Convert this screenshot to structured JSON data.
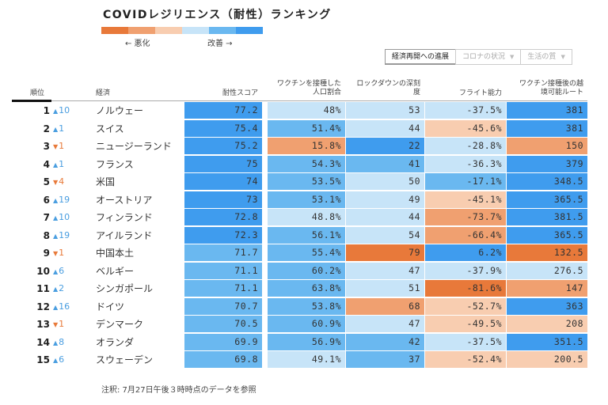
{
  "title": "COVIDレジリエンス（耐性）ランキング",
  "legend": {
    "colors": [
      "#e8793a",
      "#f0a070",
      "#f8cdb0",
      "#c7e4f8",
      "#6ab8f0",
      "#3f9cee"
    ],
    "worse_label": "← 悪化",
    "better_label": "改善 →"
  },
  "tabs": [
    {
      "label": "経済再開への進展",
      "active": true,
      "dropdown": false
    },
    {
      "label": "コロナの状況",
      "active": false,
      "dropdown": true
    },
    {
      "label": "生活の質",
      "active": false,
      "dropdown": true
    }
  ],
  "headers": {
    "rank": "順位",
    "economy": "経済",
    "score": "耐性スコア",
    "vaccinated_line1": "ワクチンを接種した",
    "vaccinated_line2": "人口割合",
    "lockdown_line1": "ロックダウンの深刻",
    "lockdown_line2": "度",
    "flight": "フライト能力",
    "route_line1": "ワクチン接種後の越",
    "route_line2": "境可能ルート"
  },
  "rows": [
    {
      "rank": "1",
      "dir": "up",
      "change": "10",
      "country": "ノルウェー",
      "score": "77.2",
      "vac": "48%",
      "lock": "53",
      "flight": "-37.5%",
      "route": "381",
      "colors": [
        "#3f9cee",
        "#c7e4f8",
        "#c7e4f8",
        "#c7e4f8",
        "#3f9cee"
      ]
    },
    {
      "rank": "2",
      "dir": "up",
      "change": "1",
      "country": "スイス",
      "score": "75.4",
      "vac": "51.4%",
      "lock": "44",
      "flight": "-45.6%",
      "route": "381",
      "colors": [
        "#3f9cee",
        "#6ab8f0",
        "#c7e4f8",
        "#f8cdb0",
        "#3f9cee"
      ]
    },
    {
      "rank": "3",
      "dir": "down",
      "change": "1",
      "country": "ニュージーランド",
      "score": "75.2",
      "vac": "15.8%",
      "lock": "22",
      "flight": "-28.8%",
      "route": "150",
      "colors": [
        "#3f9cee",
        "#f0a070",
        "#3f9cee",
        "#c7e4f8",
        "#f0a070"
      ]
    },
    {
      "rank": "4",
      "dir": "up",
      "change": "1",
      "country": "フランス",
      "score": "75",
      "vac": "54.3%",
      "lock": "41",
      "flight": "-36.3%",
      "route": "379",
      "colors": [
        "#3f9cee",
        "#6ab8f0",
        "#6ab8f0",
        "#c7e4f8",
        "#3f9cee"
      ]
    },
    {
      "rank": "5",
      "dir": "down",
      "change": "4",
      "country": "米国",
      "score": "74",
      "vac": "53.5%",
      "lock": "50",
      "flight": "-17.1%",
      "route": "348.5",
      "colors": [
        "#3f9cee",
        "#6ab8f0",
        "#c7e4f8",
        "#6ab8f0",
        "#3f9cee"
      ]
    },
    {
      "rank": "6",
      "dir": "up",
      "change": "19",
      "country": "オーストリア",
      "score": "73",
      "vac": "53.1%",
      "lock": "49",
      "flight": "-45.1%",
      "route": "365.5",
      "colors": [
        "#3f9cee",
        "#6ab8f0",
        "#c7e4f8",
        "#f8cdb0",
        "#3f9cee"
      ]
    },
    {
      "rank": "7",
      "dir": "up",
      "change": "10",
      "country": "フィンランド",
      "score": "72.8",
      "vac": "48.8%",
      "lock": "44",
      "flight": "-73.7%",
      "route": "381.5",
      "colors": [
        "#3f9cee",
        "#c7e4f8",
        "#c7e4f8",
        "#f0a070",
        "#3f9cee"
      ]
    },
    {
      "rank": "8",
      "dir": "up",
      "change": "19",
      "country": "アイルランド",
      "score": "72.3",
      "vac": "56.1%",
      "lock": "54",
      "flight": "-66.4%",
      "route": "365.5",
      "colors": [
        "#3f9cee",
        "#6ab8f0",
        "#c7e4f8",
        "#f0a070",
        "#3f9cee"
      ]
    },
    {
      "rank": "9",
      "dir": "down",
      "change": "1",
      "country": "中国本土",
      "score": "71.7",
      "vac": "55.4%",
      "lock": "79",
      "flight": "6.2%",
      "route": "132.5",
      "colors": [
        "#6ab8f0",
        "#6ab8f0",
        "#e8793a",
        "#3f9cee",
        "#e8793a"
      ]
    },
    {
      "rank": "10",
      "dir": "up",
      "change": "6",
      "country": "ベルギー",
      "score": "71.1",
      "vac": "60.2%",
      "lock": "47",
      "flight": "-37.9%",
      "route": "276.5",
      "colors": [
        "#6ab8f0",
        "#6ab8f0",
        "#c7e4f8",
        "#c7e4f8",
        "#c7e4f8"
      ]
    },
    {
      "rank": "11",
      "dir": "up",
      "change": "2",
      "country": "シンガポール",
      "score": "71.1",
      "vac": "63.8%",
      "lock": "51",
      "flight": "-81.6%",
      "route": "147",
      "colors": [
        "#6ab8f0",
        "#6ab8f0",
        "#c7e4f8",
        "#e8793a",
        "#f0a070"
      ]
    },
    {
      "rank": "12",
      "dir": "up",
      "change": "16",
      "country": "ドイツ",
      "score": "70.7",
      "vac": "53.8%",
      "lock": "68",
      "flight": "-52.7%",
      "route": "363",
      "colors": [
        "#6ab8f0",
        "#6ab8f0",
        "#f0a070",
        "#f8cdb0",
        "#3f9cee"
      ]
    },
    {
      "rank": "13",
      "dir": "down",
      "change": "1",
      "country": "デンマーク",
      "score": "70.5",
      "vac": "60.9%",
      "lock": "47",
      "flight": "-49.5%",
      "route": "208",
      "colors": [
        "#6ab8f0",
        "#6ab8f0",
        "#c7e4f8",
        "#f8cdb0",
        "#f8cdb0"
      ]
    },
    {
      "rank": "14",
      "dir": "up",
      "change": "8",
      "country": "オランダ",
      "score": "69.9",
      "vac": "56.9%",
      "lock": "42",
      "flight": "-37.5%",
      "route": "351.5",
      "colors": [
        "#6ab8f0",
        "#6ab8f0",
        "#6ab8f0",
        "#c7e4f8",
        "#3f9cee"
      ]
    },
    {
      "rank": "15",
      "dir": "up",
      "change": "6",
      "country": "スウェーデン",
      "score": "69.8",
      "vac": "49.1%",
      "lock": "37",
      "flight": "-52.4%",
      "route": "200.5",
      "colors": [
        "#6ab8f0",
        "#c7e4f8",
        "#6ab8f0",
        "#f8cdb0",
        "#f8cdb0"
      ]
    }
  ],
  "note": "注釈: 7月27日午後３時時点のデータを参照"
}
